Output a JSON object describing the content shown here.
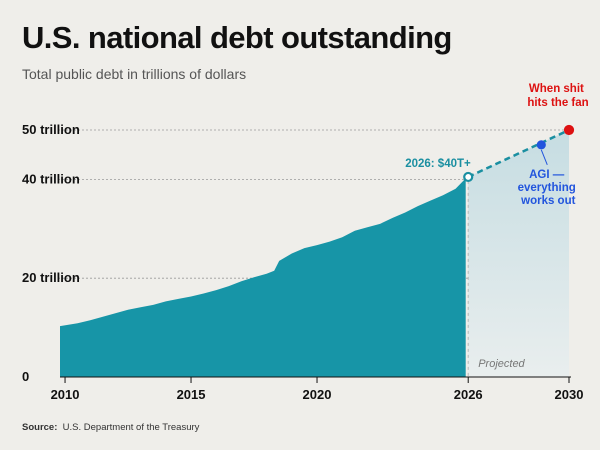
{
  "header": {
    "title": "U.S. national debt outstanding",
    "subtitle": "Total public debt in trillions of dollars"
  },
  "footer": {
    "source_label": "Source:",
    "source_text": "U.S. Department of the Treasury"
  },
  "colors": {
    "area": "#1795a7",
    "projection_fill": "#d3e4e8",
    "projection_line": "#1a8fa1",
    "agi": "#2255dd",
    "fan": "#dd1111",
    "grid": "#9a9a9a"
  },
  "chart_data": {
    "type": "area",
    "title": "U.S. national debt outstanding",
    "subtitle": "Total public debt in trillions of dollars",
    "xlabel": "",
    "ylabel": "",
    "xlim": [
      2009.8,
      2030
    ],
    "ylim": [
      0,
      50
    ],
    "grid": true,
    "y_ticks": [
      {
        "value": 0,
        "label": "0"
      },
      {
        "value": 20,
        "label": "20 trillion"
      },
      {
        "value": 40,
        "label": "40 trillion"
      },
      {
        "value": 50,
        "label": "50 trillion"
      }
    ],
    "x_ticks": [
      {
        "value": 2010,
        "label": "2010"
      },
      {
        "value": 2015,
        "label": "2015"
      },
      {
        "value": 2020,
        "label": "2020"
      },
      {
        "value": 2026,
        "label": "2026"
      },
      {
        "value": 2030,
        "label": "2030"
      }
    ],
    "series": [
      {
        "kind": "historical",
        "x": [
          2009.8,
          2010.5,
          2011.0,
          2011.5,
          2012.0,
          2012.5,
          2013.0,
          2013.5,
          2014.0,
          2014.5,
          2015.0,
          2015.5,
          2016.0,
          2016.5,
          2017.0,
          2017.5,
          2018.0,
          2018.3,
          2018.5,
          2019.0,
          2019.5,
          2020.0,
          2020.5,
          2021.0,
          2021.5,
          2022.0,
          2022.5,
          2023.0,
          2023.5,
          2024.0,
          2024.5,
          2025.0,
          2025.5,
          2025.9
        ],
        "y": [
          10.3,
          10.9,
          11.5,
          12.2,
          12.9,
          13.6,
          14.1,
          14.6,
          15.3,
          15.8,
          16.3,
          16.9,
          17.6,
          18.4,
          19.4,
          20.2,
          20.9,
          21.5,
          23.5,
          25.0,
          26.1,
          26.7,
          27.4,
          28.3,
          29.6,
          30.3,
          31.0,
          32.2,
          33.3,
          34.6,
          35.7,
          36.8,
          38.1,
          40.2
        ]
      },
      {
        "kind": "projected",
        "x": [
          2026,
          2030
        ],
        "y": [
          40.5,
          50
        ]
      }
    ],
    "markers": [
      {
        "x": 2026,
        "y": 40.5,
        "label": "2026: $40T+"
      },
      {
        "x": 2028.9,
        "y": 47.0,
        "label_lines": [
          "AGI —",
          "everything",
          "works out"
        ]
      },
      {
        "x": 2030,
        "y": 50,
        "label_lines": [
          "When shit",
          "hits the fan"
        ]
      }
    ],
    "annotations": {
      "projected_label": "Projected"
    }
  }
}
